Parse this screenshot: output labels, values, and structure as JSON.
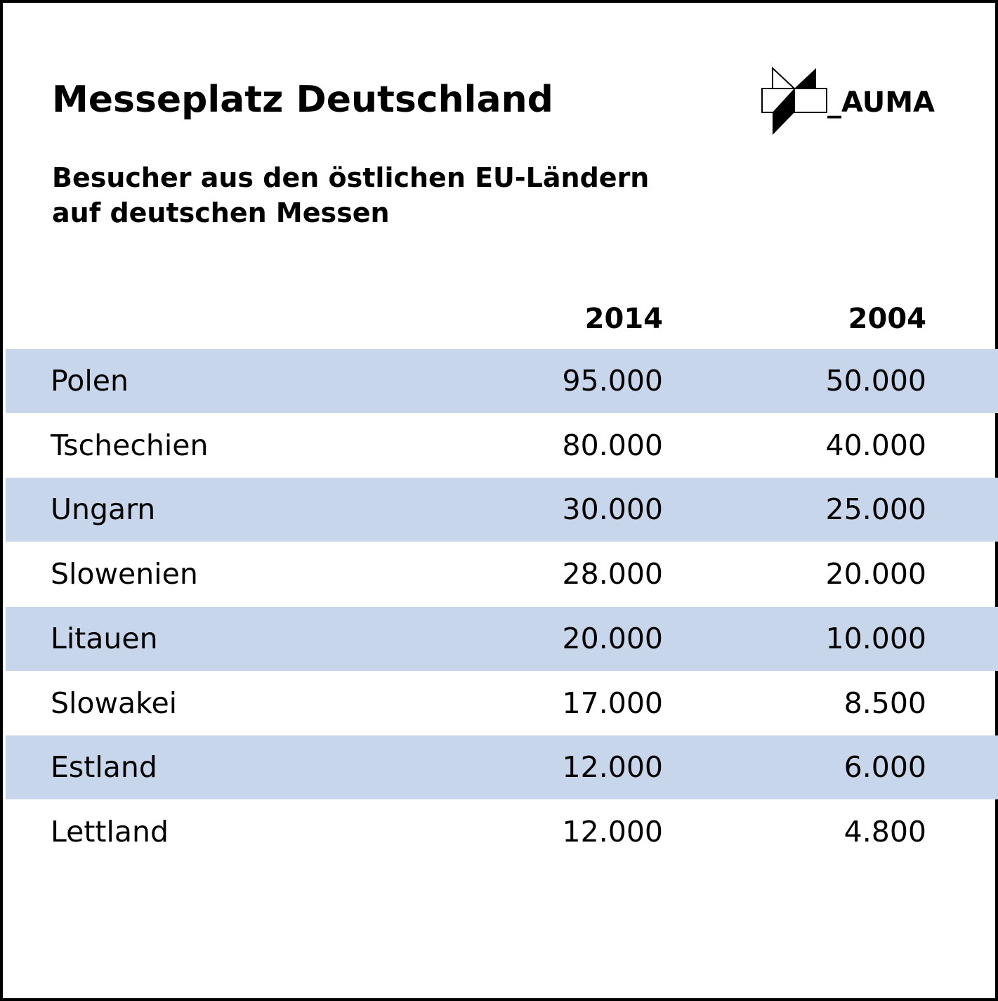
{
  "title": "Messeplatz Deutschland",
  "subtitle_lines": [
    "Besucher aus den östlichen EU-Ländern",
    "auf deutschen Messen"
  ],
  "logo": {
    "text": "_AUMA",
    "icon": "auma-logo-icon"
  },
  "colors": {
    "shaded_row": "#c8d6ec",
    "text": "#000000",
    "border": "#000000"
  },
  "chart_data": {
    "type": "table",
    "title": "Messeplatz Deutschland",
    "subtitle": "Besucher aus den östlichen EU-Ländern auf deutschen Messen",
    "columns": [
      "2014",
      "2004"
    ],
    "rows": [
      {
        "country": "Polen",
        "v2014": "95.000",
        "v2004": "50.000"
      },
      {
        "country": "Tschechien",
        "v2014": "80.000",
        "v2004": "40.000"
      },
      {
        "country": "Ungarn",
        "v2014": "30.000",
        "v2004": "25.000"
      },
      {
        "country": "Slowenien",
        "v2014": "28.000",
        "v2004": "20.000"
      },
      {
        "country": "Litauen",
        "v2014": "20.000",
        "v2004": "10.000"
      },
      {
        "country": "Slowakei",
        "v2014": "17.000",
        "v2004": "8.500"
      },
      {
        "country": "Estland",
        "v2014": "12.000",
        "v2004": "6.000"
      },
      {
        "country": "Lettland",
        "v2014": "12.000",
        "v2004": "4.800"
      }
    ]
  }
}
